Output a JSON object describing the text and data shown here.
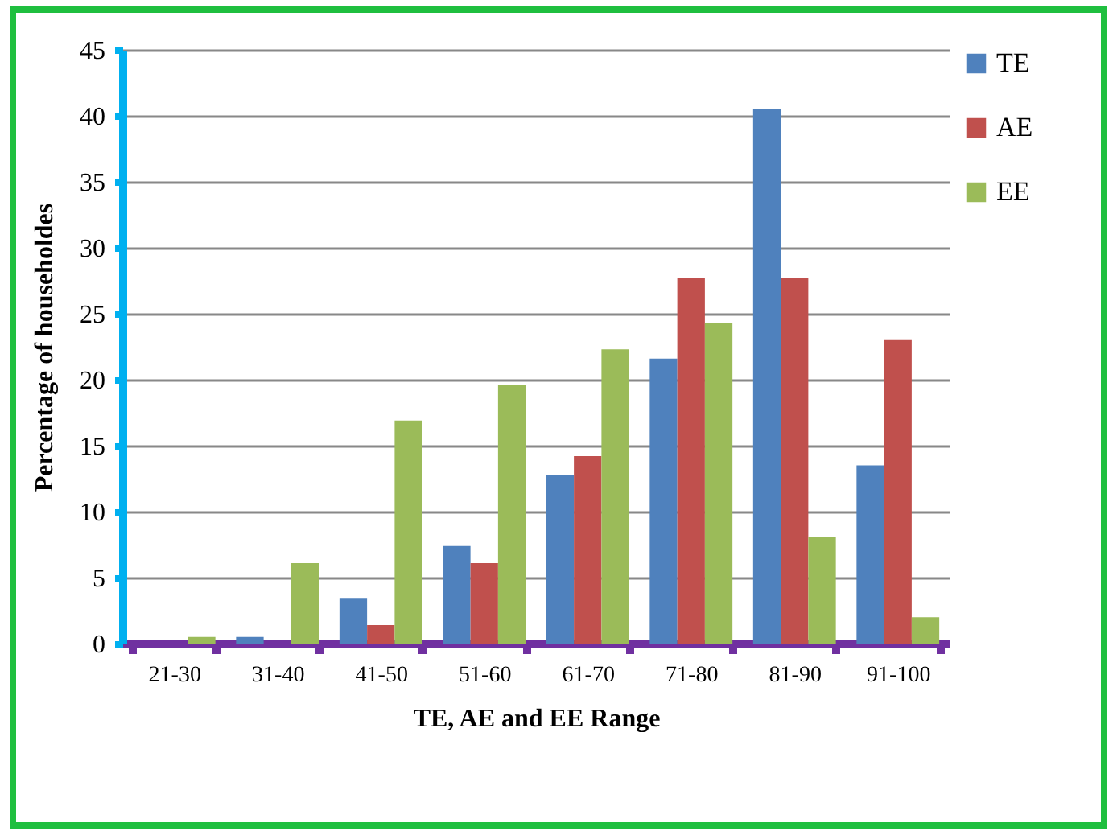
{
  "chart_data": {
    "type": "bar",
    "xlabel": "TE, AE and EE Range",
    "ylabel": "Percentage of householdes",
    "categories": [
      "21-30",
      "31-40",
      "41-50",
      "51-60",
      "61-70",
      "71-80",
      "81-90",
      "91-100"
    ],
    "series": [
      {
        "name": "TE",
        "color": "#4f81bd",
        "values": [
          0,
          0.5,
          3.4,
          7.4,
          12.8,
          21.6,
          40.5,
          13.5
        ]
      },
      {
        "name": "AE",
        "color": "#c0504d",
        "values": [
          0,
          0,
          1.4,
          6.1,
          14.2,
          27.7,
          27.7,
          23
        ]
      },
      {
        "name": "EE",
        "color": "#9bbb59",
        "values": [
          0.5,
          6.1,
          16.9,
          19.6,
          22.3,
          24.3,
          8.1,
          2
        ]
      }
    ],
    "ylim": [
      0,
      45
    ],
    "yticks": [
      0,
      5,
      10,
      15,
      20,
      25,
      30,
      35,
      40,
      45
    ],
    "grid": "y",
    "legend": "right"
  }
}
